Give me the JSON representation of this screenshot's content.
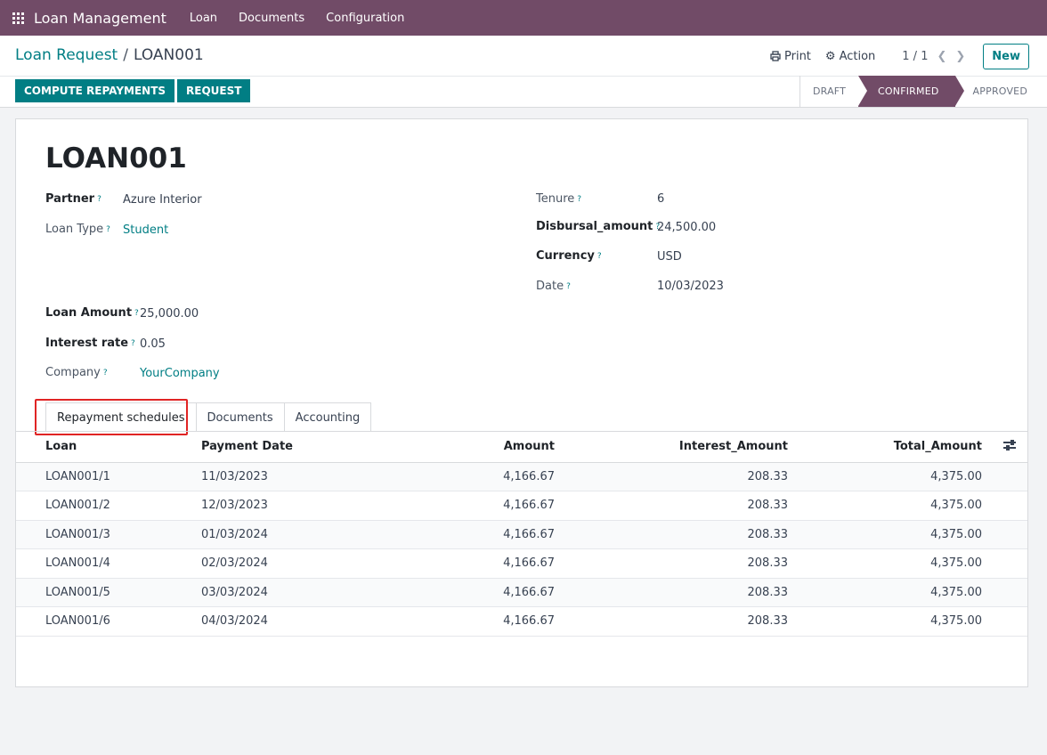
{
  "app": {
    "title": "Loan Management",
    "menu": [
      "Loan",
      "Documents",
      "Configuration"
    ],
    "accent": "#714b67",
    "primary": "#017e84"
  },
  "breadcrumb": {
    "parent": "Loan Request",
    "separator": "/",
    "current": "LOAN001"
  },
  "toolbar": {
    "print_label": "Print",
    "action_label": "Action",
    "pager": "1 / 1",
    "new_label": "New"
  },
  "buttons": {
    "compute": "COMPUTE REPAYMENTS",
    "request": "REQUEST"
  },
  "status": {
    "stages": [
      "DRAFT",
      "CONFIRMED",
      "APPROVED"
    ],
    "current": "CONFIRMED"
  },
  "record": {
    "name": "LOAN001",
    "left": [
      {
        "label": "Partner",
        "value": "Azure Interior"
      },
      {
        "label": "Loan Type",
        "value": "Student"
      }
    ],
    "right": [
      {
        "label": "Tenure",
        "value": "6"
      },
      {
        "label": "Disbursal_amount",
        "value": "24,500.00"
      },
      {
        "label": "Currency",
        "value": "USD"
      },
      {
        "label": "Date",
        "value": "10/03/2023"
      }
    ],
    "lower": [
      {
        "label": "Loan Amount",
        "value": "25,000.00"
      },
      {
        "label": "Interest rate",
        "value": "0.05"
      },
      {
        "label": "Company",
        "value": "YourCompany"
      }
    ],
    "help_marker": "?"
  },
  "tabs": [
    "Repayment schedules",
    "Documents",
    "Accounting"
  ],
  "table": {
    "columns": [
      "Loan",
      "Payment Date",
      "Amount",
      "Interest_Amount",
      "Total_Amount"
    ],
    "rows": [
      [
        "LOAN001/1",
        "11/03/2023",
        "4,166.67",
        "208.33",
        "4,375.00"
      ],
      [
        "LOAN001/2",
        "12/03/2023",
        "4,166.67",
        "208.33",
        "4,375.00"
      ],
      [
        "LOAN001/3",
        "01/03/2024",
        "4,166.67",
        "208.33",
        "4,375.00"
      ],
      [
        "LOAN001/4",
        "02/03/2024",
        "4,166.67",
        "208.33",
        "4,375.00"
      ],
      [
        "LOAN001/5",
        "03/03/2024",
        "4,166.67",
        "208.33",
        "4,375.00"
      ],
      [
        "LOAN001/6",
        "04/03/2024",
        "4,166.67",
        "208.33",
        "4,375.00"
      ]
    ]
  }
}
